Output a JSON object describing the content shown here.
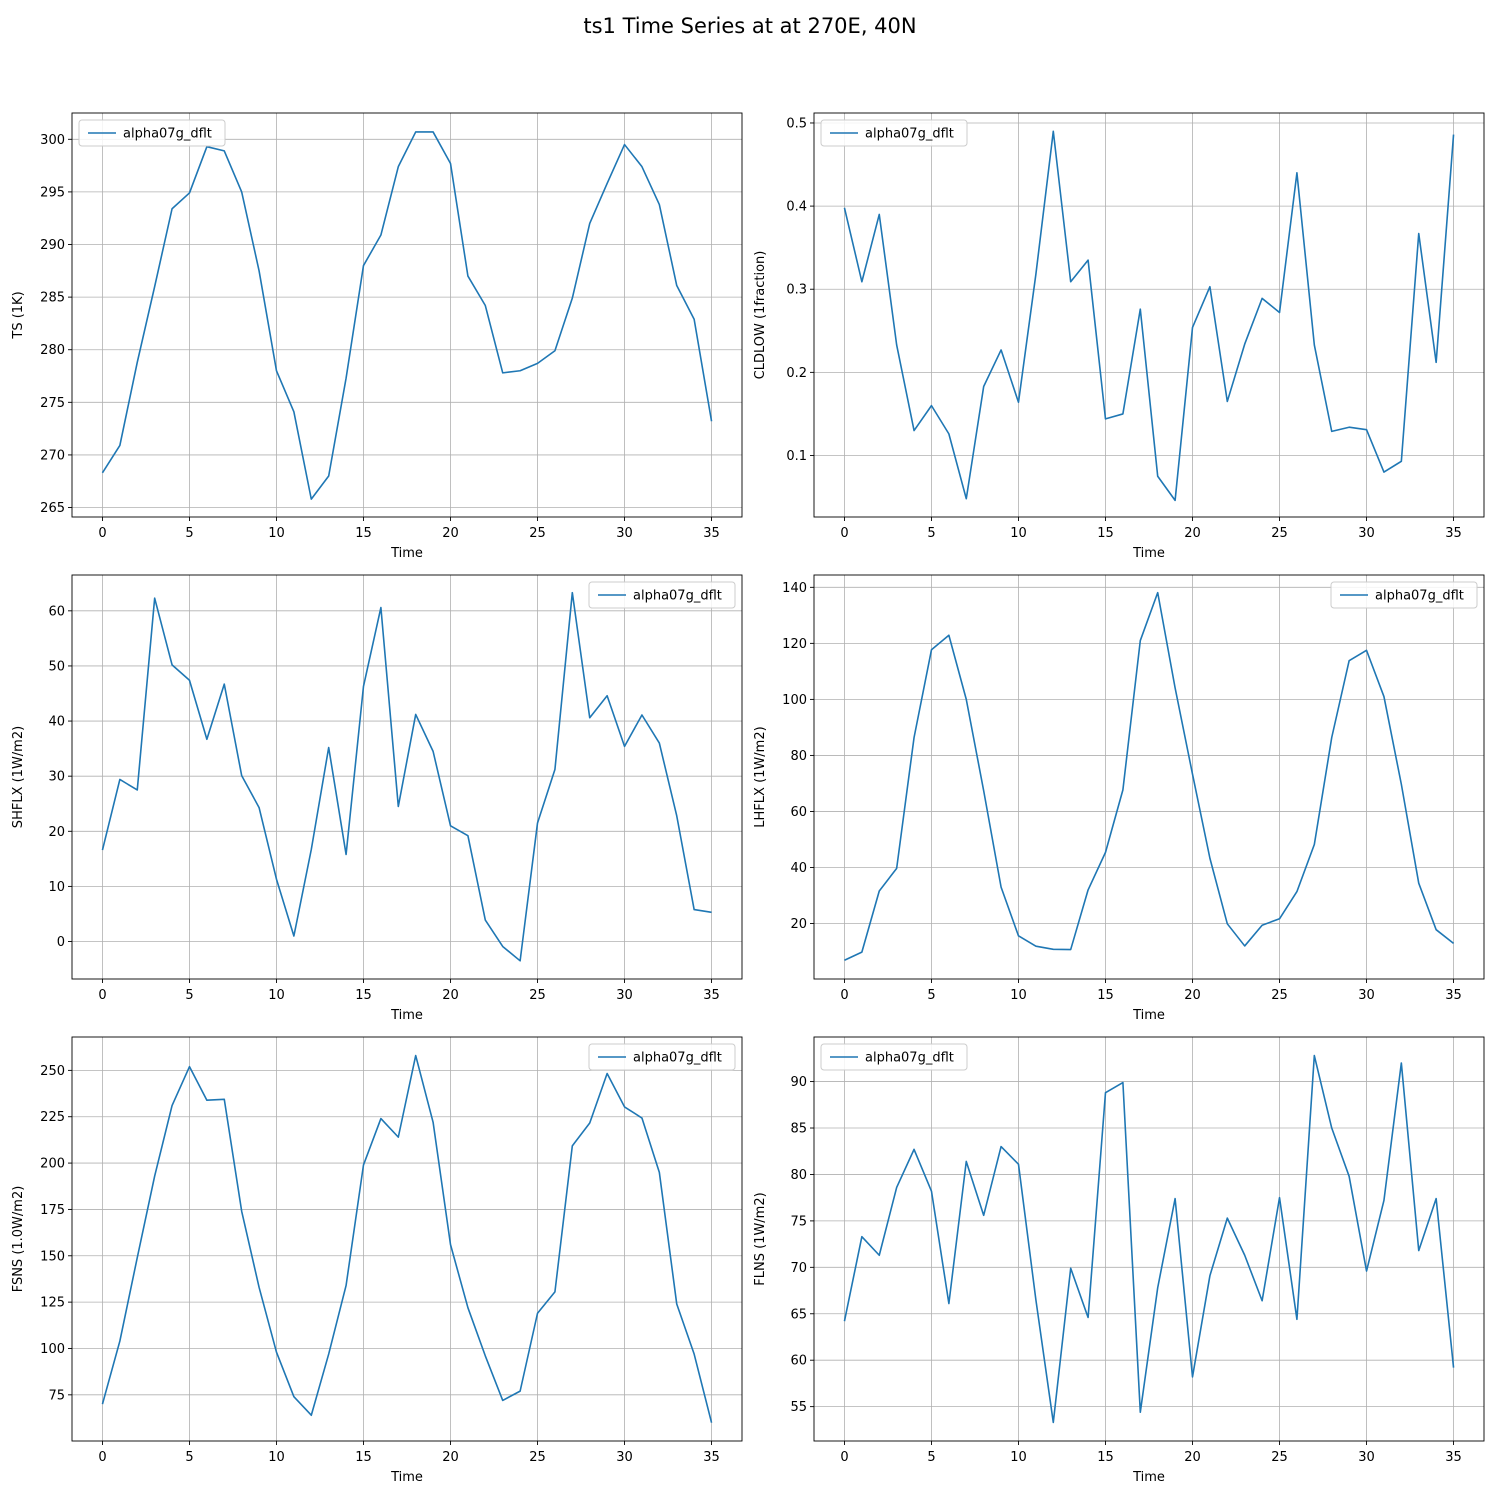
{
  "figure": {
    "title": "ts1 Time Series at at 270E, 40N"
  },
  "colors": {
    "line": "#1f77b4",
    "grid": "#b0b0b0",
    "axis": "#000000",
    "legend_border": "#cccccc"
  },
  "chart_data": [
    {
      "type": "line",
      "title": "",
      "xlabel": "Time",
      "ylabel": "TS (1K)",
      "xlim": [
        -1.75,
        36.75
      ],
      "ylim": [
        264.1,
        302.5
      ],
      "xticks": [
        0,
        5,
        10,
        15,
        20,
        25,
        30,
        35
      ],
      "yticks": [
        265,
        270,
        275,
        280,
        285,
        290,
        295,
        300
      ],
      "grid": true,
      "legend_position": "upper left",
      "series": [
        {
          "name": "alpha07g_dflt",
          "x": [
            0,
            1,
            2,
            3,
            4,
            5,
            6,
            7,
            8,
            9,
            10,
            11,
            12,
            13,
            14,
            15,
            16,
            17,
            18,
            19,
            20,
            21,
            22,
            23,
            24,
            25,
            26,
            27,
            28,
            29,
            30,
            31,
            32,
            33,
            34,
            35
          ],
          "values": [
            268.3,
            270.9,
            278.8,
            286.0,
            293.4,
            294.9,
            299.3,
            298.9,
            295.0,
            287.5,
            278.0,
            274.1,
            265.8,
            268.0,
            277.3,
            288.0,
            290.9,
            297.4,
            300.7,
            300.7,
            297.7,
            287.0,
            284.2,
            277.8,
            278.0,
            278.7,
            279.9,
            284.9,
            292.0,
            295.8,
            299.5,
            297.4,
            293.8,
            286.1,
            282.9,
            273.2
          ]
        }
      ]
    },
    {
      "type": "line",
      "title": "",
      "xlabel": "Time",
      "ylabel": "CLDLOW (1fraction)",
      "xlim": [
        -1.75,
        36.75
      ],
      "ylim": [
        0.026,
        0.512
      ],
      "xticks": [
        0,
        5,
        10,
        15,
        20,
        25,
        30,
        35
      ],
      "yticks": [
        0.1,
        0.2,
        0.3,
        0.4,
        0.5
      ],
      "grid": true,
      "legend_position": "upper left",
      "series": [
        {
          "name": "alpha07g_dflt",
          "x": [
            0,
            1,
            2,
            3,
            4,
            5,
            6,
            7,
            8,
            9,
            10,
            11,
            12,
            13,
            14,
            15,
            16,
            17,
            18,
            19,
            20,
            21,
            22,
            23,
            24,
            25,
            26,
            27,
            28,
            29,
            30,
            31,
            32,
            33,
            34,
            35
          ],
          "values": [
            0.398,
            0.309,
            0.39,
            0.233,
            0.13,
            0.16,
            0.126,
            0.048,
            0.183,
            0.227,
            0.164,
            0.318,
            0.49,
            0.309,
            0.335,
            0.144,
            0.15,
            0.276,
            0.075,
            0.046,
            0.254,
            0.303,
            0.165,
            0.234,
            0.289,
            0.272,
            0.44,
            0.233,
            0.129,
            0.134,
            0.131,
            0.08,
            0.093,
            0.367,
            0.212,
            0.486
          ]
        }
      ]
    },
    {
      "type": "line",
      "title": "",
      "xlabel": "Time",
      "ylabel": "SHFLX (1W/m2)",
      "xlim": [
        -1.75,
        36.75
      ],
      "ylim": [
        -6.8,
        66.5
      ],
      "xticks": [
        0,
        5,
        10,
        15,
        20,
        25,
        30,
        35
      ],
      "yticks": [
        0,
        10,
        20,
        30,
        40,
        50,
        60
      ],
      "grid": true,
      "legend_position": "upper right",
      "series": [
        {
          "name": "alpha07g_dflt",
          "x": [
            0,
            1,
            2,
            3,
            4,
            5,
            6,
            7,
            8,
            9,
            10,
            11,
            12,
            13,
            14,
            15,
            16,
            17,
            18,
            19,
            20,
            21,
            22,
            23,
            24,
            25,
            26,
            27,
            28,
            29,
            30,
            31,
            32,
            33,
            34,
            35
          ],
          "values": [
            16.6,
            29.4,
            27.5,
            62.3,
            50.2,
            47.4,
            36.7,
            46.7,
            30.1,
            24.3,
            11.3,
            1.0,
            16.7,
            35.2,
            15.8,
            46.3,
            60.6,
            24.5,
            41.2,
            34.5,
            21.0,
            19.2,
            3.9,
            -0.9,
            -3.5,
            21.5,
            31.2,
            63.3,
            40.6,
            44.6,
            35.4,
            41.1,
            36.0,
            22.8,
            5.8,
            5.3
          ]
        }
      ]
    },
    {
      "type": "line",
      "title": "",
      "xlabel": "Time",
      "ylabel": "LHFLX (1W/m2)",
      "xlim": [
        -1.75,
        36.75
      ],
      "ylim": [
        0.2,
        144.4
      ],
      "xticks": [
        0,
        5,
        10,
        15,
        20,
        25,
        30,
        35
      ],
      "yticks": [
        20,
        40,
        60,
        80,
        100,
        120,
        140
      ],
      "grid": true,
      "legend_position": "upper right",
      "series": [
        {
          "name": "alpha07g_dflt",
          "x": [
            0,
            1,
            2,
            3,
            4,
            5,
            6,
            7,
            8,
            9,
            10,
            11,
            12,
            13,
            14,
            15,
            16,
            17,
            18,
            19,
            20,
            21,
            22,
            23,
            24,
            25,
            26,
            27,
            28,
            29,
            30,
            31,
            32,
            33,
            34,
            35
          ],
          "values": [
            6.9,
            9.8,
            31.6,
            39.7,
            86.4,
            117.7,
            122.9,
            100.0,
            67.4,
            33.0,
            15.6,
            11.9,
            10.8,
            10.7,
            32.0,
            45.4,
            67.7,
            121.0,
            138.1,
            104.1,
            73.3,
            43.3,
            19.9,
            12.0,
            19.4,
            21.7,
            31.4,
            48.2,
            86.4,
            113.8,
            117.5,
            101.0,
            69.7,
            34.4,
            17.8,
            12.9
          ]
        }
      ]
    },
    {
      "type": "line",
      "title": "",
      "xlabel": "Time",
      "ylabel": "FSNS (1.0W/m2)",
      "xlim": [
        -1.75,
        36.75
      ],
      "ylim": [
        50.1,
        268.0
      ],
      "xticks": [
        0,
        5,
        10,
        15,
        20,
        25,
        30,
        35
      ],
      "yticks": [
        75,
        100,
        125,
        150,
        175,
        200,
        225,
        250
      ],
      "grid": true,
      "legend_position": "upper right",
      "series": [
        {
          "name": "alpha07g_dflt",
          "x": [
            0,
            1,
            2,
            3,
            4,
            5,
            6,
            7,
            8,
            9,
            10,
            11,
            12,
            13,
            14,
            15,
            16,
            17,
            18,
            19,
            20,
            21,
            22,
            23,
            24,
            25,
            26,
            27,
            28,
            29,
            30,
            31,
            32,
            33,
            34,
            35
          ],
          "values": [
            70.0,
            104.0,
            149.0,
            193.0,
            231.0,
            252.0,
            233.9,
            234.4,
            174.0,
            133.0,
            98.0,
            74.0,
            64.0,
            97.0,
            134.0,
            199.0,
            224.0,
            214.0,
            258.0,
            222.0,
            156.0,
            122.0,
            96.0,
            72.0,
            77.0,
            119.0,
            130.5,
            209.3,
            221.6,
            248.3,
            230.3,
            224.3,
            195.0,
            124.0,
            97.0,
            60.0
          ]
        }
      ]
    },
    {
      "type": "line",
      "title": "",
      "xlabel": "Time",
      "ylabel": "FLNS (1W/m2)",
      "xlim": [
        -1.75,
        36.75
      ],
      "ylim": [
        51.3,
        94.8
      ],
      "xticks": [
        0,
        5,
        10,
        15,
        20,
        25,
        30,
        35
      ],
      "yticks": [
        55,
        60,
        65,
        70,
        75,
        80,
        85,
        90
      ],
      "grid": true,
      "legend_position": "upper left",
      "series": [
        {
          "name": "alpha07g_dflt",
          "x": [
            0,
            1,
            2,
            3,
            4,
            5,
            6,
            7,
            8,
            9,
            10,
            11,
            12,
            13,
            14,
            15,
            16,
            17,
            18,
            19,
            20,
            21,
            22,
            23,
            24,
            25,
            26,
            27,
            28,
            29,
            30,
            31,
            32,
            33,
            34,
            35
          ],
          "values": [
            64.2,
            73.3,
            71.3,
            78.6,
            82.7,
            78.2,
            66.1,
            81.4,
            75.6,
            83.0,
            81.1,
            66.5,
            53.3,
            69.9,
            64.6,
            88.8,
            89.9,
            54.4,
            67.8,
            77.4,
            58.2,
            69.1,
            75.3,
            71.3,
            66.4,
            77.5,
            64.4,
            92.8,
            85.0,
            79.8,
            69.6,
            77.2,
            92.0,
            71.8,
            77.4,
            59.2
          ]
        }
      ]
    }
  ]
}
